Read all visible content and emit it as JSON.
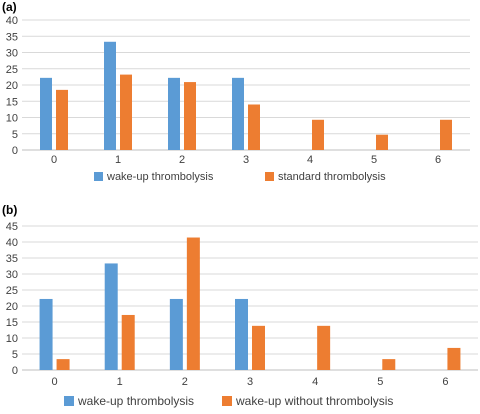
{
  "colors": {
    "blue": "#5b9bd5",
    "orange": "#ed7d31",
    "grid": "#d9d9d9",
    "axis": "#bfbfbf"
  },
  "chart_data": [
    {
      "type": "bar",
      "panel_label": "(a)",
      "categories": [
        "0",
        "1",
        "2",
        "3",
        "4",
        "5",
        "6"
      ],
      "ylim": [
        0,
        40
      ],
      "yticks": [
        0,
        5,
        10,
        15,
        20,
        25,
        30,
        35,
        40
      ],
      "grid": true,
      "legend_position": "bottom",
      "series": [
        {
          "name": "wake-up thrombolysis",
          "color": "#5b9bd5",
          "values": [
            22.2,
            33.3,
            22.2,
            22.2,
            0,
            0,
            0
          ]
        },
        {
          "name": "standard thrombolysis",
          "color": "#ed7d31",
          "values": [
            18.5,
            23.2,
            20.9,
            14.0,
            9.3,
            4.7,
            9.3
          ]
        }
      ]
    },
    {
      "type": "bar",
      "panel_label": "(b)",
      "categories": [
        "0",
        "1",
        "2",
        "3",
        "4",
        "5",
        "6"
      ],
      "ylim": [
        0,
        45
      ],
      "yticks": [
        0,
        5,
        10,
        15,
        20,
        25,
        30,
        35,
        40,
        45
      ],
      "grid": true,
      "legend_position": "bottom",
      "series": [
        {
          "name": "wake-up thrombolysis",
          "color": "#5b9bd5",
          "values": [
            22.2,
            33.3,
            22.2,
            22.2,
            0,
            0,
            0
          ]
        },
        {
          "name": "wake-up without thrombolysis",
          "color": "#ed7d31",
          "values": [
            3.4,
            17.2,
            41.4,
            13.8,
            13.8,
            3.4,
            6.9
          ]
        }
      ]
    }
  ]
}
